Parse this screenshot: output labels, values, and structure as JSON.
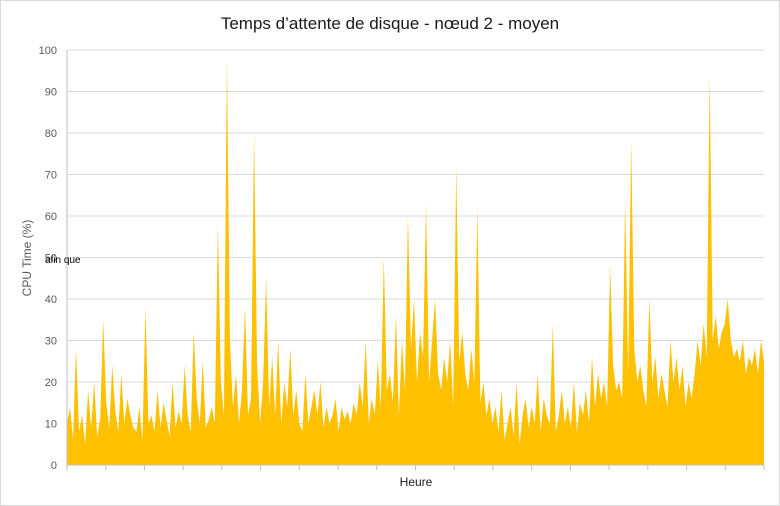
{
  "chart_data": {
    "type": "area",
    "title": "Temps d’attente de disque - nœud 2 - moyen",
    "xlabel": "Heure",
    "ylabel": "CPU Time (%)",
    "annotation": "afin que",
    "ylim": [
      0,
      100
    ],
    "yticks": [
      "0",
      "10",
      "20",
      "30",
      "40",
      "50",
      "60",
      "70",
      "80",
      "90",
      "100"
    ],
    "grid": true,
    "legend": "none",
    "color": "#FFC000",
    "series": [
      {
        "values": [
          10,
          14,
          6,
          28,
          8,
          12,
          5,
          18,
          9,
          20,
          7,
          11,
          35,
          15,
          9,
          24,
          13,
          8,
          22,
          10,
          16,
          12,
          9,
          8,
          14,
          6,
          38,
          10,
          12,
          8,
          18,
          9,
          15,
          11,
          7,
          20,
          9,
          13,
          10,
          24,
          12,
          8,
          32,
          16,
          10,
          25,
          9,
          11,
          14,
          10,
          58,
          20,
          12,
          98,
          30,
          14,
          22,
          10,
          18,
          38,
          12,
          16,
          80,
          24,
          10,
          20,
          45,
          14,
          26,
          12,
          30,
          10,
          20,
          14,
          28,
          12,
          18,
          10,
          8,
          22,
          10,
          14,
          18,
          12,
          20,
          9,
          14,
          10,
          12,
          16,
          8,
          14,
          11,
          13,
          10,
          15,
          12,
          20,
          14,
          30,
          10,
          16,
          12,
          25,
          14,
          50,
          18,
          22,
          15,
          36,
          12,
          30,
          18,
          60,
          28,
          40,
          20,
          32,
          26,
          63,
          20,
          30,
          40,
          22,
          18,
          26,
          20,
          30,
          14,
          72,
          25,
          32,
          22,
          18,
          28,
          20,
          62,
          15,
          20,
          12,
          16,
          10,
          14,
          8,
          18,
          6,
          10,
          14,
          7,
          20,
          5,
          12,
          16,
          9,
          14,
          10,
          22,
          8,
          16,
          12,
          10,
          34,
          8,
          12,
          18,
          10,
          14,
          9,
          20,
          8,
          15,
          12,
          18,
          10,
          26,
          14,
          22,
          16,
          20,
          14,
          48,
          24,
          18,
          20,
          16,
          64,
          22,
          78,
          28,
          20,
          24,
          18,
          14,
          40,
          20,
          26,
          16,
          22,
          18,
          14,
          30,
          20,
          26,
          18,
          24,
          14,
          20,
          16,
          22,
          30,
          24,
          34,
          26,
          94,
          30,
          36,
          28,
          32,
          34,
          40,
          30,
          26,
          28,
          25,
          30,
          22,
          26,
          24,
          28,
          22,
          30,
          25
        ]
      }
    ]
  }
}
